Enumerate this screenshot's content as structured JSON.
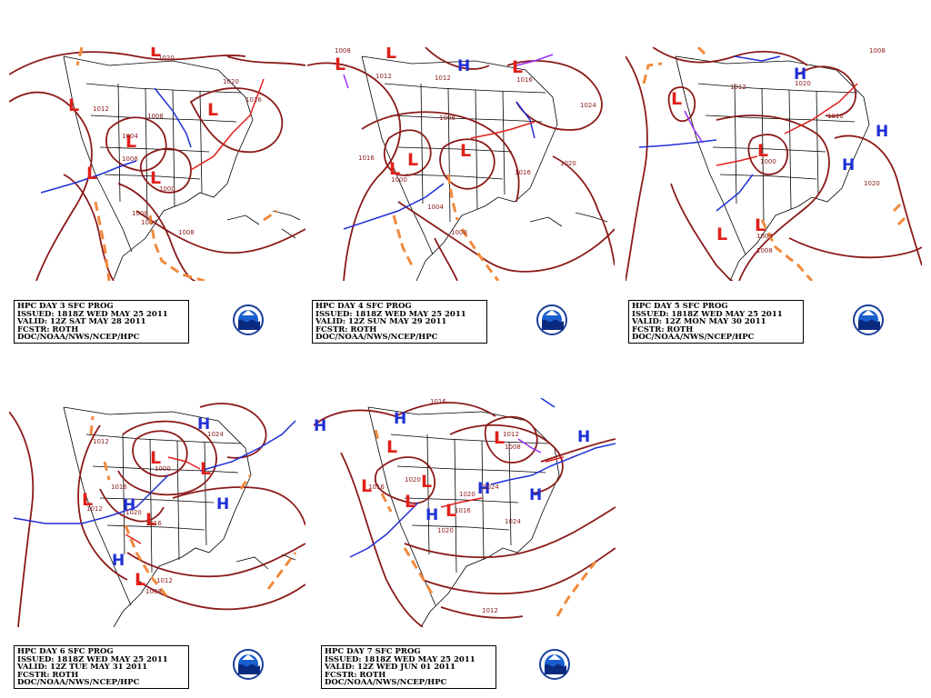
{
  "panels": [
    {
      "id": "day3",
      "info": [
        "HPC DAY 3 SFC PROG",
        "ISSUED: 1818Z WED MAY 25 2011",
        "VALID: 12Z SAT MAY 28 2011",
        "FCSTR: ROTH",
        "DOC/NOAA/NWS/NCEP/HPC"
      ],
      "highs": [],
      "lows": [
        "L",
        "L",
        "L",
        "L",
        "L",
        "L"
      ],
      "isobar_labels": [
        "1020",
        "1012",
        "1008",
        "1004",
        "1008",
        "1000",
        "1008",
        "1020",
        "1016",
        "1004",
        "1008"
      ]
    },
    {
      "id": "day4",
      "info": [
        "HPC DAY 4 SFC PROG",
        "ISSUED: 1818Z WED MAY 25 2011",
        "VALID: 12Z SUN MAY 29 2011",
        "FCSTR: ROTH",
        "DOC/NOAA/NWS/NCEP/HPC"
      ],
      "highs": [
        "H"
      ],
      "lows": [
        "L",
        "L",
        "L",
        "L",
        "L",
        "L"
      ],
      "isobar_labels": [
        "1008",
        "1012",
        "1012",
        "1016",
        "1024",
        "1008",
        "1016",
        "1000",
        "1004",
        "1000",
        "1020",
        "1016"
      ]
    },
    {
      "id": "day5",
      "info": [
        "HPC DAY 5 SFC PROG",
        "ISSUED: 1818Z WED MAY 25 2011",
        "VALID: 12Z MON MAY 30 2011",
        "FCSTR: ROTH",
        "DOC/NOAA/NWS/NCEP/HPC"
      ],
      "highs": [
        "H",
        "H",
        "H"
      ],
      "lows": [
        "L",
        "L",
        "L",
        "L"
      ],
      "isobar_labels": [
        "1008",
        "1012",
        "1020",
        "1000",
        "1004",
        "1008",
        "1020",
        "1016"
      ]
    },
    {
      "id": "day6",
      "info": [
        "HPC DAY 6 SFC PROG",
        "ISSUED: 1818Z WED MAY 25 2011",
        "VALID: 12Z TUE MAY 31 2011",
        "FCSTR: ROTH",
        "DOC/NOAA/NWS/NCEP/HPC"
      ],
      "highs": [
        "H",
        "H",
        "H",
        "H"
      ],
      "lows": [
        "L",
        "L",
        "L",
        "L",
        "L"
      ],
      "isobar_labels": [
        "1012",
        "1024",
        "1000",
        "1016",
        "1020",
        "1012",
        "1016",
        "1012",
        "1008"
      ]
    },
    {
      "id": "day7",
      "info": [
        "HPC DAY 7 SFC PROG",
        "ISSUED: 1818Z WED MAY 25 2011",
        "VALID: 12Z WED JUN 01 2011",
        "FCSTR: ROTH",
        "DOC/NOAA/NWS/NCEP/HPC"
      ],
      "highs": [
        "H",
        "H",
        "H",
        "H",
        "H",
        "H"
      ],
      "lows": [
        "L",
        "L",
        "L",
        "L",
        "L",
        "L"
      ],
      "isobar_labels": [
        "1016",
        "1012",
        "1008",
        "1016",
        "1020",
        "1024",
        "1020",
        "1016",
        "1024",
        "1020",
        "1012"
      ]
    }
  ],
  "colors": {
    "isobar": "#8b1a1a",
    "trough": "#f08a3c",
    "high": "#1f2fd6",
    "low": "#e0201a",
    "cold_front": "#1f2fd6",
    "warm_front": "#e0201a",
    "occluded_front": "#9b30ff",
    "borders": "#000000"
  },
  "logo_icon": "noaa-logo-icon"
}
